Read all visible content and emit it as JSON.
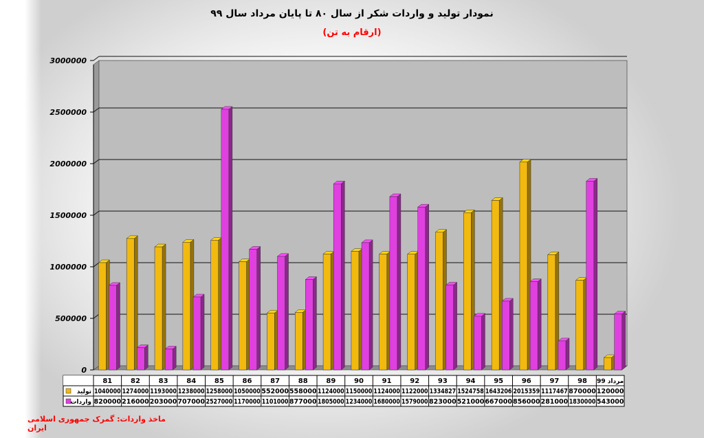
{
  "title": "نمودار تولید و واردات شکر از سال ۸۰ تا پایان مرداد سال ۹۹",
  "subtitle": "(ارقام به تن)",
  "source": "ماخذ واردات: گمرک جمهوری اسلامی ایران",
  "colors": {
    "production": "#f2b90f",
    "imports": "#e040e0",
    "plot_bg": "#bdbdbd"
  },
  "chart_data": {
    "type": "bar",
    "categories": [
      "81",
      "82",
      "83",
      "84",
      "85",
      "86",
      "87",
      "88",
      "89",
      "90",
      "91",
      "92",
      "93",
      "94",
      "95",
      "96",
      "97",
      "98",
      "مرداد 99"
    ],
    "series": [
      {
        "name": "تولید",
        "values": [
          1040000,
          1274000,
          1193000,
          1238000,
          1258000,
          1050000,
          552000,
          558000,
          1124000,
          1150000,
          1124000,
          1122000,
          1334827,
          1524758,
          1643206,
          2015359,
          1117467,
          870000,
          120000
        ]
      },
      {
        "name": "واردات",
        "values": [
          820000,
          216000,
          203000,
          707000,
          2527000,
          1170000,
          1101000,
          877000,
          1805000,
          1234000,
          1680000,
          1579000,
          823000,
          521000,
          667000,
          856000,
          281000,
          1830000,
          543000
        ]
      }
    ],
    "y_ticks": [
      0,
      500000,
      1000000,
      1500000,
      2000000,
      2500000,
      3000000
    ],
    "ylim": [
      0,
      3000000
    ],
    "grid": true,
    "legend": "data-table-left"
  }
}
